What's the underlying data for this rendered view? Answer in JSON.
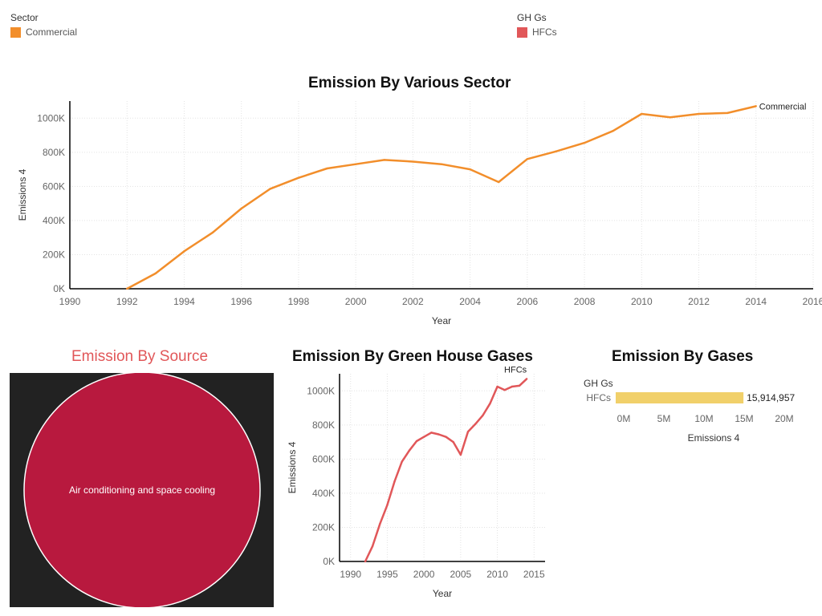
{
  "legends": {
    "sector": {
      "title": "Sector",
      "item": "Commercial",
      "color": "#f28e2b"
    },
    "ghgs": {
      "title": "GH Gs",
      "item": "HFCs",
      "color": "#e15759"
    }
  },
  "chart_data": [
    {
      "type": "line",
      "title": "Emission By Various Sector",
      "xlabel": "Year",
      "ylabel": "Emissions 4",
      "xlim": [
        1990,
        2016
      ],
      "ylim": [
        0,
        1100000
      ],
      "xticks": [
        1990,
        1992,
        1994,
        1996,
        1998,
        2000,
        2002,
        2004,
        2006,
        2008,
        2010,
        2012,
        2014,
        2016
      ],
      "xtick_labels": [
        "1990",
        "1992",
        "1994",
        "1996",
        "1998",
        "2000",
        "2002",
        "2004",
        "2006",
        "2008",
        "2010",
        "2012",
        "2014",
        "2016"
      ],
      "yticks": [
        0,
        200000,
        400000,
        600000,
        800000,
        1000000
      ],
      "ytick_labels": [
        "0K",
        "200K",
        "400K",
        "600K",
        "800K",
        "1000K"
      ],
      "grid": true,
      "color": "#f28e2b",
      "series": [
        {
          "name": "Commercial",
          "x": [
            1992,
            1993,
            1994,
            1995,
            1996,
            1997,
            1998,
            1999,
            2000,
            2001,
            2002,
            2003,
            2004,
            2005,
            2006,
            2007,
            2008,
            2009,
            2010,
            2011,
            2012,
            2013,
            2014
          ],
          "values": [
            0,
            90000,
            220000,
            330000,
            470000,
            585000,
            650000,
            705000,
            730000,
            755000,
            745000,
            730000,
            700000,
            625000,
            760000,
            805000,
            855000,
            925000,
            1025000,
            1005000,
            1025000,
            1030000,
            1070000
          ]
        }
      ]
    },
    {
      "type": "bubble",
      "title": "Emission By Source",
      "title_color": "#e15759",
      "background": "#222222",
      "bubble_color": "#b8193e",
      "bubbles": [
        {
          "label": "Air conditioning and space cooling",
          "value": 15914957
        }
      ]
    },
    {
      "type": "line",
      "title": "Emission By Green House Gases",
      "xlabel": "Year",
      "ylabel": "Emissions 4",
      "xlim": [
        1988.5,
        2016.5
      ],
      "ylim": [
        0,
        1100000
      ],
      "xticks": [
        1990,
        1995,
        2000,
        2005,
        2010,
        2015
      ],
      "xtick_labels": [
        "1990",
        "1995",
        "2000",
        "2005",
        "2010",
        "2015"
      ],
      "yticks": [
        0,
        200000,
        400000,
        600000,
        800000,
        1000000
      ],
      "ytick_labels": [
        "0K",
        "200K",
        "400K",
        "600K",
        "800K",
        "1000K"
      ],
      "grid": true,
      "color": "#e15759",
      "series": [
        {
          "name": "HFCs",
          "x": [
            1992,
            1993,
            1994,
            1995,
            1996,
            1997,
            1998,
            1999,
            2000,
            2001,
            2002,
            2003,
            2004,
            2005,
            2006,
            2007,
            2008,
            2009,
            2010,
            2011,
            2012,
            2013,
            2014
          ],
          "values": [
            0,
            90000,
            220000,
            330000,
            470000,
            585000,
            650000,
            705000,
            730000,
            755000,
            745000,
            730000,
            700000,
            625000,
            760000,
            805000,
            855000,
            925000,
            1025000,
            1005000,
            1025000,
            1030000,
            1070000
          ]
        }
      ]
    },
    {
      "type": "bar",
      "orientation": "horizontal",
      "title": "Emission By Gases",
      "category_header": "GH Gs",
      "xlabel": "Emissions 4",
      "xlim": [
        0,
        23000000
      ],
      "xticks": [
        0,
        5000000,
        10000000,
        15000000,
        20000000
      ],
      "xtick_labels": [
        "0M",
        "5M",
        "10M",
        "15M",
        "20M"
      ],
      "color": "#f1d06a",
      "categories": [
        "HFCs"
      ],
      "values": [
        15914957
      ],
      "value_labels": [
        "15,914,957"
      ]
    }
  ]
}
